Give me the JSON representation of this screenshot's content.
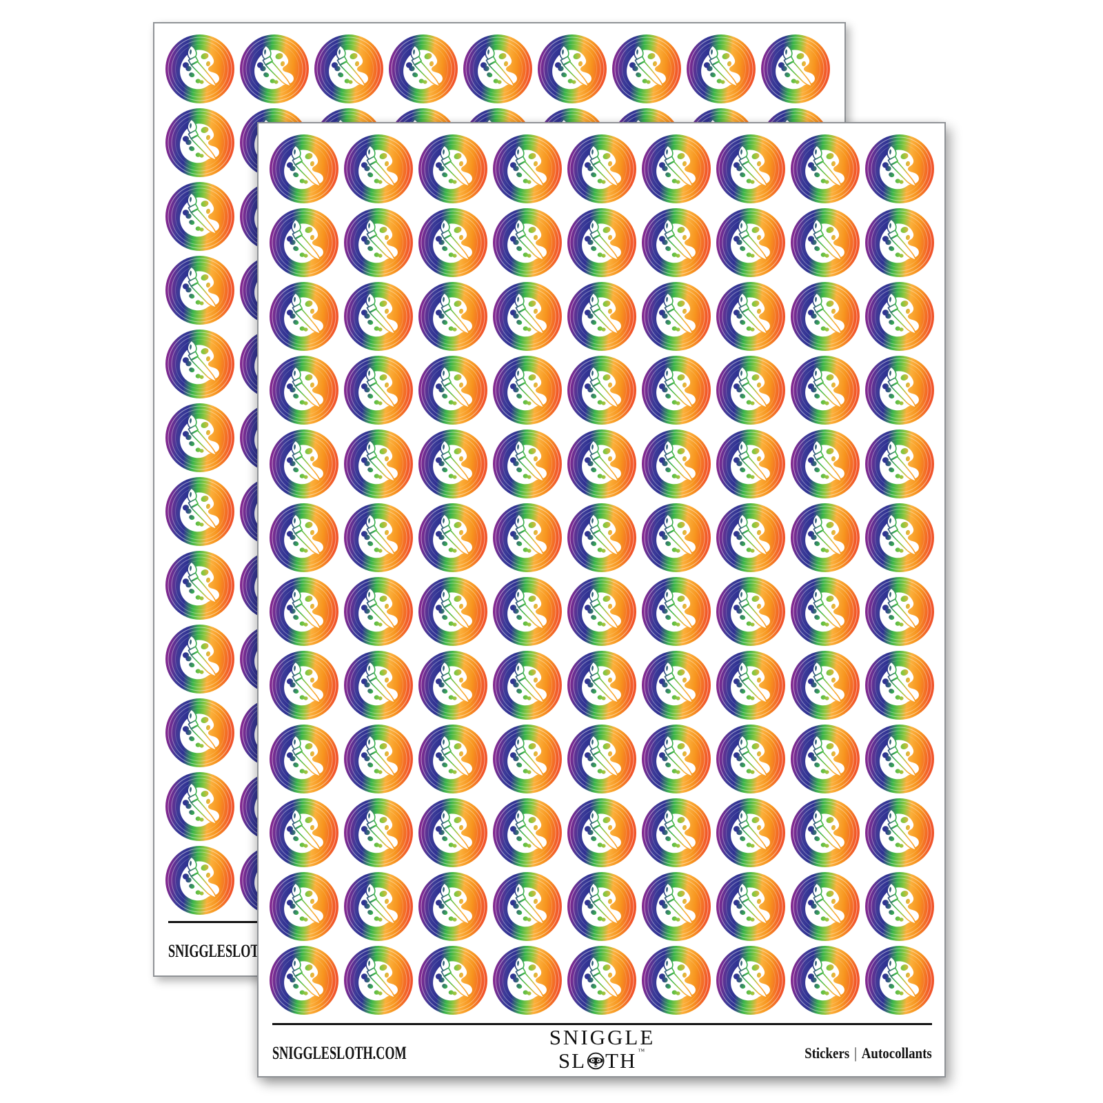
{
  "scene": {
    "background": "#ffffff",
    "description": "Two white sticker sheets stacked with drop shadows, each filled with round rainbow paint-palette stickers"
  },
  "sheet_grid": {
    "rows": 12,
    "cols": 9,
    "stickers_per_sheet": 108,
    "sheet_count": 2
  },
  "sticker": {
    "icon": "paint-palette-with-brush",
    "shape": "round",
    "art_color": "#FFFFFF",
    "ring_color": "#FFFFFF",
    "gradient_stops": [
      {
        "offset": "0%",
        "color": "#93278F"
      },
      {
        "offset": "10%",
        "color": "#7B2A90"
      },
      {
        "offset": "24%",
        "color": "#3B3A97"
      },
      {
        "offset": "34%",
        "color": "#2E3192"
      },
      {
        "offset": "48%",
        "color": "#3AB54A"
      },
      {
        "offset": "58%",
        "color": "#8DC63F"
      },
      {
        "offset": "68%",
        "color": "#FBB03B"
      },
      {
        "offset": "82%",
        "color": "#F7941E"
      },
      {
        "offset": "100%",
        "color": "#F1552B"
      }
    ]
  },
  "footer": {
    "website": "SNIGGLESLOTH.COM",
    "brand_top": "SNIGGLE",
    "brand_bottom_left": "SL",
    "brand_bottom_right": "TH",
    "trademark": "™",
    "category_en": "Stickers",
    "divider": "|",
    "category_fr": "Autocollants"
  }
}
